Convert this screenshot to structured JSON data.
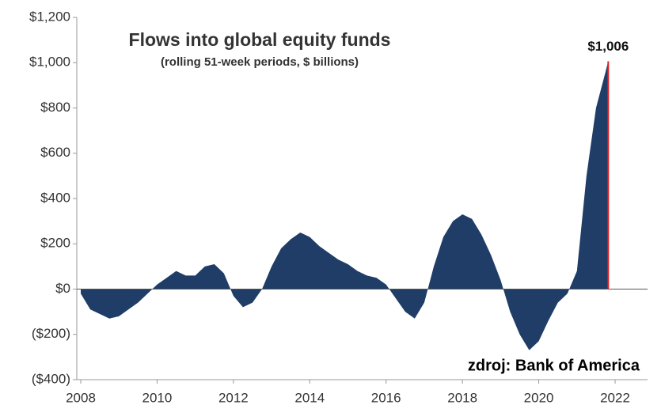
{
  "chart_data": {
    "type": "area",
    "title": "Flows into global equity funds",
    "subtitle": "(rolling  51-week periods, $ billions)",
    "source": "zdroj: Bank of America",
    "x": [
      2008.0,
      2008.25,
      2008.5,
      2008.75,
      2009.0,
      2009.25,
      2009.5,
      2009.75,
      2010.0,
      2010.25,
      2010.5,
      2010.75,
      2011.0,
      2011.25,
      2011.5,
      2011.75,
      2012.0,
      2012.25,
      2012.5,
      2012.75,
      2013.0,
      2013.25,
      2013.5,
      2013.75,
      2014.0,
      2014.25,
      2014.5,
      2014.75,
      2015.0,
      2015.25,
      2015.5,
      2015.75,
      2016.0,
      2016.25,
      2016.5,
      2016.75,
      2017.0,
      2017.25,
      2017.5,
      2017.75,
      2018.0,
      2018.25,
      2018.5,
      2018.75,
      2019.0,
      2019.25,
      2019.5,
      2019.75,
      2020.0,
      2020.25,
      2020.5,
      2020.75,
      2021.0,
      2021.25,
      2021.5,
      2021.75,
      2021.82
    ],
    "values": [
      -20,
      -90,
      -110,
      -130,
      -120,
      -90,
      -60,
      -20,
      20,
      50,
      80,
      60,
      60,
      100,
      110,
      70,
      -30,
      -80,
      -60,
      0,
      100,
      180,
      220,
      250,
      230,
      190,
      160,
      130,
      110,
      80,
      60,
      50,
      20,
      -40,
      -100,
      -130,
      -60,
      100,
      230,
      300,
      330,
      310,
      240,
      150,
      40,
      -100,
      -200,
      -270,
      -230,
      -140,
      -60,
      -20,
      80,
      500,
      800,
      960,
      1006
    ],
    "value_labels": [
      null,
      null,
      null,
      null,
      null,
      null,
      null,
      null,
      null,
      null,
      null,
      null,
      null,
      null,
      null,
      null,
      null,
      null,
      null,
      null,
      null,
      null,
      null,
      null,
      null,
      null,
      null,
      null,
      null,
      null,
      null,
      null,
      null,
      null,
      null,
      null,
      null,
      null,
      null,
      null,
      null,
      null,
      null,
      null,
      null,
      null,
      null,
      null,
      null,
      null,
      null,
      null,
      null,
      null,
      null,
      null,
      "$1,006"
    ],
    "color": "#1f3d66",
    "highlight_color": "#e0202a",
    "xlim": [
      2008,
      2022.85
    ],
    "xticks": [
      2008,
      2010,
      2012,
      2014,
      2016,
      2018,
      2020,
      2022
    ],
    "ylim": [
      -400,
      1200
    ],
    "yticks": [
      {
        "value": -400,
        "label": "($400)"
      },
      {
        "value": -200,
        "label": "($200)"
      },
      {
        "value": 0,
        "label": "$0"
      },
      {
        "value": 200,
        "label": "$200"
      },
      {
        "value": 400,
        "label": "$400"
      },
      {
        "value": 600,
        "label": "$600"
      },
      {
        "value": 800,
        "label": "$800"
      },
      {
        "value": 1000,
        "label": "$1,000"
      },
      {
        "value": 1200,
        "label": "$1,200"
      }
    ]
  }
}
